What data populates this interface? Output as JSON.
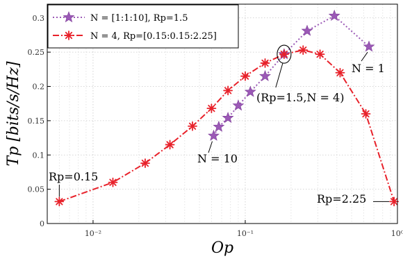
{
  "chart_data": {
    "type": "line",
    "title": "",
    "xlabel": "O_p",
    "ylabel": "T_p [bits/s/Hz]",
    "xscale": "log",
    "xlim": [
      0.005,
      1.0
    ],
    "ylim": [
      0,
      0.32
    ],
    "grid": true,
    "legend_position": "top-left",
    "x_ticks": [
      {
        "value": 0.01,
        "label": "10⁻²"
      },
      {
        "value": 0.1,
        "label": "10⁻¹"
      },
      {
        "value": 1.0,
        "label": "10⁰"
      }
    ],
    "y_ticks": [
      {
        "value": 0,
        "label": "0"
      },
      {
        "value": 0.05,
        "label": "0.05"
      },
      {
        "value": 0.1,
        "label": "0.1"
      },
      {
        "value": 0.15,
        "label": "0.15"
      },
      {
        "value": 0.2,
        "label": "0.2"
      },
      {
        "value": 0.25,
        "label": "0.25"
      },
      {
        "value": 0.3,
        "label": "0.3"
      }
    ],
    "series": [
      {
        "name": "N = [1:1:10], Rp=1.5",
        "color": "#9b59b6",
        "line_style": "dotted",
        "marker": "star",
        "points": [
          {
            "x": 0.062,
            "y": 0.128
          },
          {
            "x": 0.067,
            "y": 0.141
          },
          {
            "x": 0.077,
            "y": 0.154
          },
          {
            "x": 0.09,
            "y": 0.172
          },
          {
            "x": 0.108,
            "y": 0.192
          },
          {
            "x": 0.135,
            "y": 0.215
          },
          {
            "x": 0.18,
            "y": 0.247
          },
          {
            "x": 0.255,
            "y": 0.281
          },
          {
            "x": 0.385,
            "y": 0.303
          },
          {
            "x": 0.65,
            "y": 0.258
          }
        ]
      },
      {
        "name": "N = 4, Rp=[0.15:0.15:2.25]",
        "color": "#e8212a",
        "line_style": "dashdot",
        "marker": "asterisk",
        "points": [
          {
            "x": 0.006,
            "y": 0.032
          },
          {
            "x": 0.0135,
            "y": 0.06
          },
          {
            "x": 0.022,
            "y": 0.088
          },
          {
            "x": 0.032,
            "y": 0.115
          },
          {
            "x": 0.045,
            "y": 0.142
          },
          {
            "x": 0.06,
            "y": 0.168
          },
          {
            "x": 0.077,
            "y": 0.194
          },
          {
            "x": 0.1,
            "y": 0.215
          },
          {
            "x": 0.135,
            "y": 0.234
          },
          {
            "x": 0.18,
            "y": 0.247
          },
          {
            "x": 0.24,
            "y": 0.253
          },
          {
            "x": 0.31,
            "y": 0.247
          },
          {
            "x": 0.42,
            "y": 0.22
          },
          {
            "x": 0.62,
            "y": 0.16
          },
          {
            "x": 0.95,
            "y": 0.032
          }
        ]
      }
    ],
    "annotations": {
      "rp_015": {
        "text": "Rp=0.15"
      },
      "rp_225": {
        "text": "Rp=2.25"
      },
      "n_1": {
        "text": "N = 1"
      },
      "n_10": {
        "text": "N = 10"
      },
      "intersection": {
        "text": "(Rp=1.5,N = 4)"
      }
    }
  }
}
